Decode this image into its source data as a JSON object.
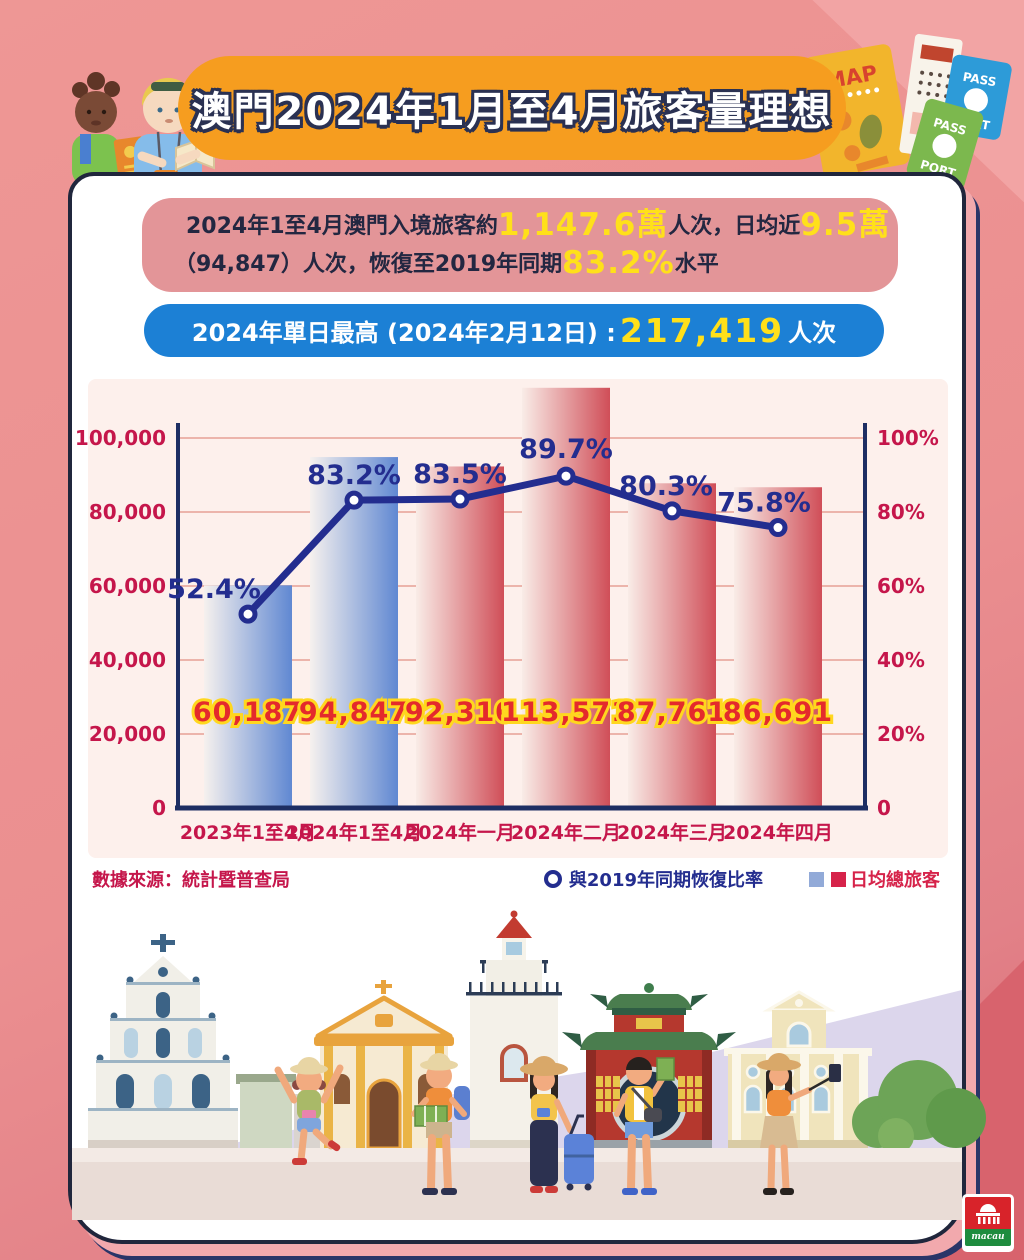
{
  "header": {
    "title": "澳門2024年1月至4月旅客量理想",
    "travel_items": {
      "map_label": "MAP",
      "passport_green_top": "PASS",
      "passport_green_bottom": "PORT",
      "passport_blue_top": "PASS",
      "passport_blue_bottom": "PORT"
    }
  },
  "summary": {
    "line1": [
      {
        "text": "2024年1至4月澳門入境旅客約"
      },
      {
        "text": "1,147.6萬"
      },
      {
        "text": "人次，日均近"
      },
      {
        "text": "9.5萬"
      }
    ],
    "line2": [
      {
        "text": "（94,847）人次，恢復至2019年同期"
      },
      {
        "text": "83.2%"
      },
      {
        "text": "水平"
      }
    ]
  },
  "peak_banner": {
    "prefix": "2024年單日最高 (2024年2月12日) : ",
    "value": "217,419",
    "suffix": "人次"
  },
  "chart_data": {
    "type": "bar+line combo",
    "title": "",
    "categories": [
      "2023年1至4月",
      "2024年1至4月",
      "2024年一月",
      "2024年二月",
      "2024年三月",
      "2024年四月"
    ],
    "series": [
      {
        "name": "日均總旅客",
        "type": "bar",
        "axis": "left",
        "values": [
          60187,
          94847,
          92310,
          113571,
          87761,
          86691
        ],
        "labels": [
          "60,187",
          "94,847",
          "92,310",
          "113,571",
          "87,761",
          "86,691"
        ],
        "styles": [
          "blue",
          "blue",
          "red",
          "red",
          "red",
          "red"
        ]
      },
      {
        "name": "與2019年同期恢復比率",
        "type": "line",
        "axis": "right",
        "values": [
          52.4,
          83.2,
          83.5,
          89.7,
          80.3,
          75.8
        ],
        "labels": [
          "52.4%",
          "83.2%",
          "83.5%",
          "89.7%",
          "80.3%",
          "75.8%"
        ]
      }
    ],
    "left_axis": {
      "max": 100000,
      "ticks": [
        "100,000",
        "80,000",
        "60,000",
        "40,000",
        "20,000",
        "0"
      ]
    },
    "right_axis": {
      "max": 100,
      "ticks": [
        "100%",
        "80%",
        "60%",
        "40%",
        "20%",
        "0"
      ]
    },
    "grid": true,
    "legend_position": "bottom-right"
  },
  "legend": {
    "source": "數據來源：統計暨普查局",
    "line_label": "與2019年同期恢復比率",
    "bar_label": "日均總旅客"
  },
  "footer_logo": {
    "text": "macau"
  },
  "colors": {
    "background_salmon": "#eb8f90",
    "banner_orange": "#f69d1f",
    "summary_pink": "#e39598",
    "peak_blue": "#1c80d5",
    "highlight_yellow": "#ffe01a",
    "panel_bg": "#fdf0ec",
    "grid": "#ecb4ab",
    "axis_navy": "#1d2e63",
    "tick_red": "#c5164b",
    "line_navy": "#232d8f",
    "value_red": "#e42a2c",
    "value_outline_yellow": "#ffd71e",
    "bar_blue_from": "#f6f1ee",
    "bar_blue_to": "#6088d2",
    "bar_red_from": "#f9ece7",
    "bar_red_to": "#d04e58",
    "legend_blue_square": "#92aad8",
    "legend_red_square": "#d6234a"
  }
}
